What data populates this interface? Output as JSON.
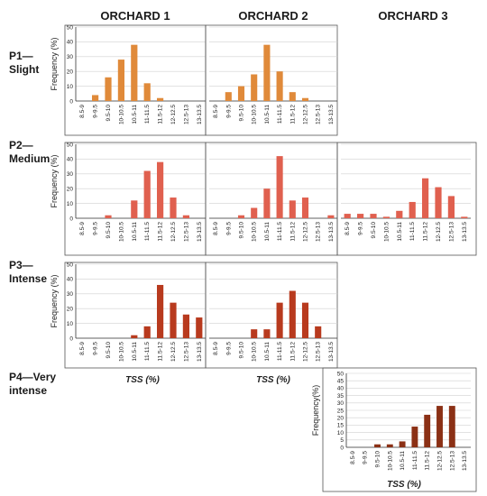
{
  "figure": {
    "column_titles": [
      "ORCHARD 1",
      "ORCHARD 2",
      "ORCHARD 3"
    ],
    "row_labels": [
      [
        "P1—",
        "Slight"
      ],
      [
        "P2—",
        "Medium"
      ],
      [
        "P3—",
        "Intense"
      ],
      [
        "P4—Very",
        "intense"
      ]
    ],
    "colors": {
      "P1": "#e08a3a",
      "P2": "#e0604f",
      "P3": "#b83a1e",
      "P4": "#8b3015"
    }
  },
  "chart_data": [
    {
      "type": "bar",
      "panel": "P1-ORCHARD 1",
      "color": "#e08a3a",
      "ylabel": "Frequency (%)",
      "xlabel": "",
      "ylim": [
        0,
        50
      ],
      "yticks": [
        0,
        10,
        20,
        30,
        40,
        50
      ],
      "grid": true,
      "categories": [
        "8.5-9",
        "9-9.5",
        "9.5-10",
        "10-10.5",
        "10.5-11",
        "11-11.5",
        "11.5-12",
        "12-12.5",
        "12.5-13",
        "13-13.5"
      ],
      "values": [
        0,
        4,
        16,
        28,
        38,
        12,
        2,
        0,
        0,
        0
      ]
    },
    {
      "type": "bar",
      "panel": "P1-ORCHARD 2",
      "color": "#e08a3a",
      "ylabel": "",
      "xlabel": "",
      "ylim": [
        0,
        50
      ],
      "grid": true,
      "categories": [
        "8.5-9",
        "9-9.5",
        "9.5-10",
        "10-10.5",
        "10.5-11",
        "11-11.5",
        "11.5-12",
        "12-12.5",
        "12.5-13",
        "13-13.5"
      ],
      "values": [
        0,
        6,
        10,
        18,
        38,
        20,
        6,
        2,
        0,
        0
      ]
    },
    {
      "type": "bar",
      "panel": "P2-ORCHARD 1",
      "color": "#e0604f",
      "ylabel": "Frequency (%)",
      "xlabel": "",
      "ylim": [
        0,
        50
      ],
      "yticks": [
        0,
        10,
        20,
        30,
        40,
        50
      ],
      "grid": true,
      "categories": [
        "8.5-9",
        "9-9.5",
        "9.5-10",
        "10-10.5",
        "10.5-11",
        "11-11.5",
        "11.5-12",
        "12-12.5",
        "12.5-13",
        "13-13.5"
      ],
      "values": [
        0,
        0,
        2,
        0,
        12,
        32,
        38,
        14,
        2,
        0
      ]
    },
    {
      "type": "bar",
      "panel": "P2-ORCHARD 2",
      "color": "#e0604f",
      "ylabel": "",
      "xlabel": "",
      "ylim": [
        0,
        50
      ],
      "grid": true,
      "categories": [
        "8.5-9",
        "9-9.5",
        "9.5-10",
        "10-10.5",
        "10.5-11",
        "11-11.5",
        "11.5-12",
        "12-12.5",
        "12.5-13",
        "13-13.5"
      ],
      "values": [
        0,
        0,
        2,
        7,
        20,
        42,
        12,
        14,
        0,
        2
      ]
    },
    {
      "type": "bar",
      "panel": "P2-ORCHARD 3",
      "color": "#e0604f",
      "ylabel": "",
      "xlabel": "",
      "ylim": [
        0,
        50
      ],
      "grid": true,
      "categories": [
        "8.5-9",
        "9-9.5",
        "9.5-10",
        "10-10.5",
        "10.5-11",
        "11-11.5",
        "11.5-12",
        "12-12.5",
        "12.5-13",
        "13-13.5"
      ],
      "values": [
        3,
        3,
        3,
        1,
        5,
        11,
        27,
        21,
        15,
        1
      ]
    },
    {
      "type": "bar",
      "panel": "P3-ORCHARD 1",
      "color": "#b83a1e",
      "ylabel": "Frequency (%)",
      "xlabel": "TSS (%)",
      "ylim": [
        0,
        50
      ],
      "yticks": [
        0,
        10,
        20,
        30,
        40,
        50
      ],
      "grid": true,
      "categories": [
        "8.5-9",
        "9-9.5",
        "9.5-10",
        "10-10.5",
        "10.5-11",
        "11-11.5",
        "11.5-12",
        "12-12.5",
        "12.5-13",
        "13-13.5"
      ],
      "values": [
        0,
        0,
        0,
        0,
        2,
        8,
        36,
        24,
        16,
        14
      ]
    },
    {
      "type": "bar",
      "panel": "P3-ORCHARD 2",
      "color": "#b83a1e",
      "ylabel": "",
      "xlabel": "TSS (%)",
      "ylim": [
        0,
        50
      ],
      "grid": true,
      "categories": [
        "8.5-9",
        "9-9.5",
        "9.5-10",
        "10-10.5",
        "10.5-11",
        "11-11.5",
        "11.5-12",
        "12-12.5",
        "12.5-13",
        "13-13.5"
      ],
      "values": [
        0,
        0,
        0,
        6,
        6,
        24,
        32,
        24,
        8,
        0
      ]
    },
    {
      "type": "bar",
      "panel": "P4-ORCHARD 3",
      "color": "#8b3015",
      "ylabel": "Frequency(%)",
      "xlabel": "TSS (%)",
      "ylim": [
        0,
        50
      ],
      "yticks": [
        0,
        5,
        10,
        15,
        20,
        25,
        30,
        35,
        40,
        45,
        50
      ],
      "grid": true,
      "categories": [
        "8.5-9",
        "9-9.5",
        "9.5-10",
        "10-10.5",
        "10.5-11",
        "11-11.5",
        "11.5-12",
        "12-12.5",
        "12.5-13",
        "13-13.5"
      ],
      "values": [
        0,
        0,
        2,
        2,
        4,
        14,
        22,
        28,
        28,
        0
      ]
    }
  ]
}
